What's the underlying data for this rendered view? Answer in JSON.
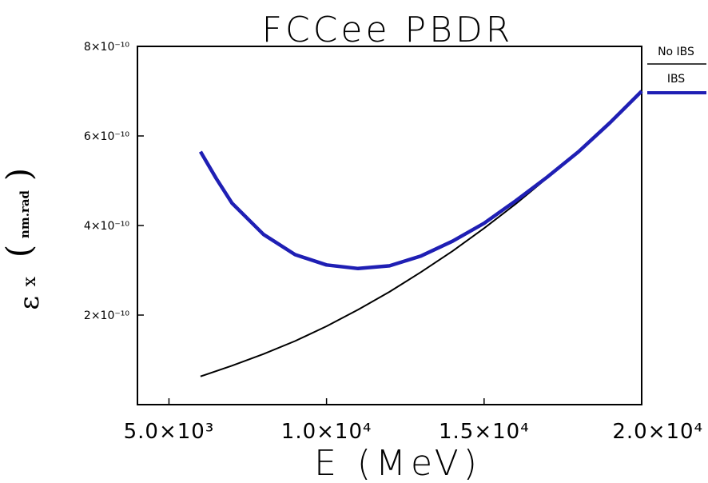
{
  "chart_data": {
    "type": "line",
    "title": "FCCee PBDR",
    "xlabel": "E (MeV)",
    "ylabel_symbol": "ε",
    "ylabel_sub": "x",
    "ylabel_unit": "nm.rad",
    "xlim": [
      4000,
      20000
    ],
    "ylim": [
      0,
      8e-10
    ],
    "x_ticks": [
      5000,
      10000,
      15000,
      20000
    ],
    "x_tick_labels": [
      "5.0×10³",
      "1.0×10⁴",
      "1.5×10⁴",
      "2.0×10⁴"
    ],
    "y_ticks": [
      2e-10,
      4e-10,
      6e-10,
      8e-10
    ],
    "y_tick_labels": [
      "2×10⁻¹⁰",
      "4×10⁻¹⁰",
      "6×10⁻¹⁰",
      "8×10⁻¹⁰"
    ],
    "grid": false,
    "legend_position": "right",
    "series": [
      {
        "name": "No IBS",
        "color": "#000000",
        "x": [
          6000,
          7000,
          8000,
          9000,
          10000,
          11000,
          12000,
          13000,
          14000,
          15000,
          16000,
          17000,
          18000,
          19000,
          20000
        ],
        "values": [
          6.3e-11,
          8.7e-11,
          1.13e-10,
          1.42e-10,
          1.75e-10,
          2.12e-10,
          2.52e-10,
          2.96e-10,
          3.43e-10,
          3.94e-10,
          4.48e-10,
          5.06e-10,
          5.67e-10,
          6.32e-10,
          7e-10
        ]
      },
      {
        "name": "IBS",
        "color": "#1f1fb4",
        "x": [
          6000,
          6500,
          7000,
          8000,
          9000,
          10000,
          11000,
          12000,
          13000,
          14000,
          15000,
          16000,
          17000,
          18000,
          19000,
          20000
        ],
        "values": [
          5.65e-10,
          5.05e-10,
          4.5e-10,
          3.8e-10,
          3.35e-10,
          3.12e-10,
          3.04e-10,
          3.1e-10,
          3.32e-10,
          3.65e-10,
          4.05e-10,
          4.55e-10,
          5.08e-10,
          5.65e-10,
          6.3e-10,
          7e-10
        ]
      }
    ]
  }
}
